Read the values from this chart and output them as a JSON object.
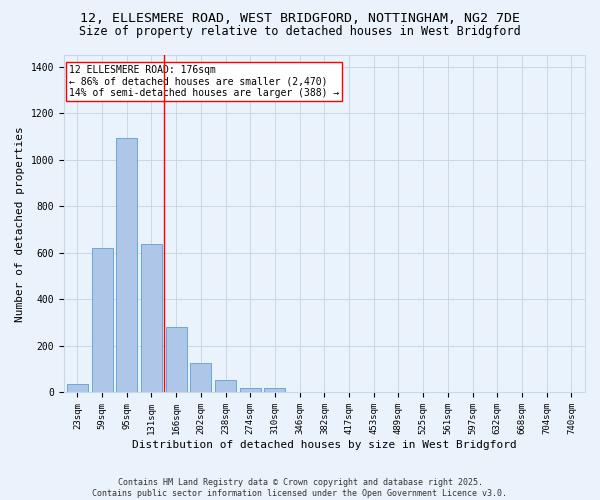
{
  "title_line1": "12, ELLESMERE ROAD, WEST BRIDGFORD, NOTTINGHAM, NG2 7DE",
  "title_line2": "Size of property relative to detached houses in West Bridgford",
  "xlabel": "Distribution of detached houses by size in West Bridgford",
  "ylabel": "Number of detached properties",
  "categories": [
    "23sqm",
    "59sqm",
    "95sqm",
    "131sqm",
    "166sqm",
    "202sqm",
    "238sqm",
    "274sqm",
    "310sqm",
    "346sqm",
    "382sqm",
    "417sqm",
    "453sqm",
    "489sqm",
    "525sqm",
    "561sqm",
    "597sqm",
    "632sqm",
    "668sqm",
    "704sqm",
    "740sqm"
  ],
  "values": [
    35,
    620,
    1095,
    640,
    280,
    125,
    52,
    20,
    20,
    0,
    0,
    0,
    0,
    0,
    0,
    0,
    0,
    0,
    0,
    0,
    0
  ],
  "bar_color": "#aec6e8",
  "bar_edge_color": "#5a9fd4",
  "grid_color": "#c8d8e8",
  "background_color": "#eaf2fb",
  "vline_color": "red",
  "vline_pos": 3.5,
  "annotation_text": "12 ELLESMERE ROAD: 176sqm\n← 86% of detached houses are smaller (2,470)\n14% of semi-detached houses are larger (388) →",
  "ylim": [
    0,
    1450
  ],
  "yticks": [
    0,
    200,
    400,
    600,
    800,
    1000,
    1200,
    1400
  ],
  "footer_line1": "Contains HM Land Registry data © Crown copyright and database right 2025.",
  "footer_line2": "Contains public sector information licensed under the Open Government Licence v3.0.",
  "title_fontsize": 9.5,
  "subtitle_fontsize": 8.5,
  "axis_label_fontsize": 8,
  "tick_fontsize": 6.5,
  "footer_fontsize": 6,
  "annotation_fontsize": 7
}
